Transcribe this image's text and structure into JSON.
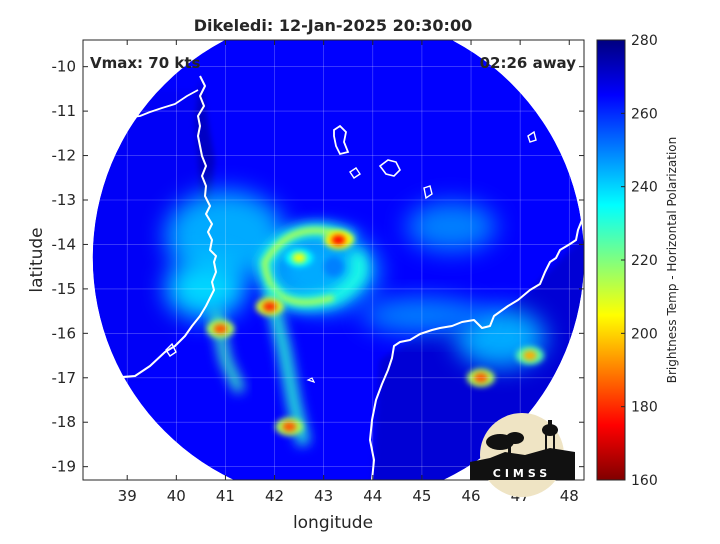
{
  "chart_data": {
    "type": "heatmap",
    "title": "Dikeledi: 12-Jan-2025 20:30:00",
    "xlabel": "longitude",
    "ylabel": "latitude",
    "xlim": [
      38.1,
      48.3
    ],
    "ylim": [
      -19.3,
      -9.4
    ],
    "xticks": [
      39,
      40,
      41,
      42,
      43,
      44,
      45,
      46,
      47,
      48
    ],
    "yticks": [
      -10,
      -11,
      -12,
      -13,
      -14,
      -15,
      -16,
      -17,
      -18,
      -19
    ],
    "grid": true,
    "annotations": {
      "vmax": "Vmax: 70 kts",
      "time_away": "02:26 away",
      "logo": "CIMSS"
    },
    "colorbar": {
      "label": "Brightness Temp - Horizontal Polarization",
      "range": [
        160,
        280
      ],
      "ticks": [
        280,
        260,
        240,
        220,
        200,
        180,
        160
      ],
      "colormap": "jet"
    },
    "swath": {
      "center": [
        43.3,
        -14.3
      ],
      "radius_deg": 5.0
    },
    "storm_center": [
      43.2,
      -14.5
    ],
    "cold_features": [
      {
        "lon": 43.3,
        "lat": -13.9,
        "min_tb": 175
      },
      {
        "lon": 42.5,
        "lat": -14.3,
        "min_tb": 205
      },
      {
        "lon": 41.9,
        "lat": -15.4,
        "min_tb": 180
      },
      {
        "lon": 40.9,
        "lat": -15.9,
        "min_tb": 185
      },
      {
        "lon": 42.3,
        "lat": -18.1,
        "min_tb": 185
      },
      {
        "lon": 46.2,
        "lat": -17.0,
        "min_tb": 185
      },
      {
        "lon": 47.2,
        "lat": -16.5,
        "min_tb": 195
      }
    ]
  }
}
